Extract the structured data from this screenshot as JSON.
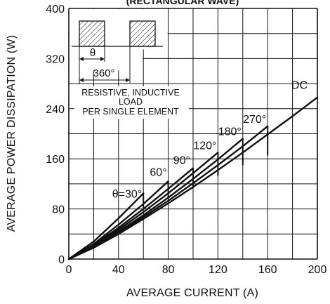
{
  "chart_data": {
    "type": "line",
    "title": "(RECTANGULAR WAVE)",
    "xlabel": "AVERAGE CURRENT (A)",
    "ylabel": "AVERAGE POWER DISSIPATION (W)",
    "xlim": [
      0,
      200
    ],
    "ylim": [
      0,
      400
    ],
    "x_ticks": [
      "0",
      "40",
      "80",
      "120",
      "160",
      "200"
    ],
    "y_ticks": [
      "0",
      "80",
      "160",
      "240",
      "320",
      "400"
    ],
    "grid": true,
    "series": [
      {
        "name": "θ=30°",
        "x": [
          0,
          20,
          40,
          60
        ],
        "y": [
          0,
          28,
          65,
          105
        ]
      },
      {
        "name": "60°",
        "x": [
          0,
          20,
          40,
          60,
          80
        ],
        "y": [
          0,
          24,
          55,
          88,
          124
        ]
      },
      {
        "name": "90°",
        "x": [
          0,
          20,
          40,
          60,
          80,
          100
        ],
        "y": [
          0,
          22,
          50,
          80,
          112,
          145
        ]
      },
      {
        "name": "120°",
        "x": [
          0,
          20,
          40,
          60,
          80,
          100,
          120
        ],
        "y": [
          0,
          21,
          47,
          75,
          105,
          137,
          170
        ]
      },
      {
        "name": "180°",
        "x": [
          0,
          20,
          40,
          60,
          80,
          100,
          120,
          140
        ],
        "y": [
          0,
          20,
          44,
          70,
          98,
          128,
          159,
          192
        ]
      },
      {
        "name": "270°",
        "x": [
          0,
          20,
          40,
          60,
          80,
          100,
          120,
          140,
          160
        ],
        "y": [
          0,
          19,
          42,
          67,
          93,
          121,
          150,
          180,
          212
        ]
      },
      {
        "name": "DC",
        "x": [
          0,
          20,
          40,
          60,
          80,
          100,
          120,
          140,
          160,
          180,
          200
        ],
        "y": [
          0,
          18,
          40,
          64,
          89,
          115,
          142,
          170,
          199,
          228,
          258
        ]
      }
    ],
    "annotations": {
      "theta_symbol": "θ",
      "period_label": "360°",
      "note_line1": "RESISTIVE, INDUCTIVE",
      "note_line2": "LOAD",
      "note_line3": "PER SINGLE ELEMENT"
    }
  },
  "colors": {
    "line": "#111111",
    "grid": "#111111",
    "background": "#ffffff",
    "hatch": "#111111"
  }
}
